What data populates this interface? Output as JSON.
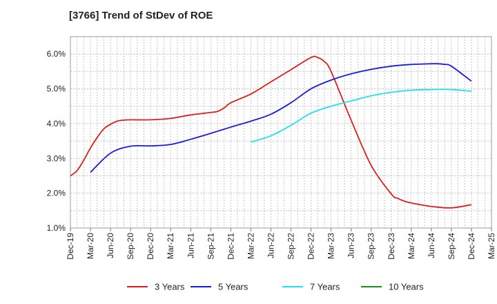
{
  "chart_data": {
    "type": "line",
    "title": "[3766]  Trend of StDev of ROE",
    "xlabel": "",
    "ylabel": "",
    "ylim": [
      1.0,
      6.5
    ],
    "y_ticks": [
      "1.0%",
      "2.0%",
      "3.0%",
      "4.0%",
      "5.0%",
      "6.0%"
    ],
    "y_tick_values": [
      1.0,
      2.0,
      3.0,
      4.0,
      5.0,
      6.0
    ],
    "x_ticks": [
      "Dec-19",
      "Mar-20",
      "Jun-20",
      "Sep-20",
      "Dec-20",
      "Mar-21",
      "Jun-21",
      "Sep-21",
      "Dec-21",
      "Mar-22",
      "Jun-22",
      "Sep-22",
      "Dec-22",
      "Mar-23",
      "Jun-23",
      "Sep-23",
      "Dec-23",
      "Mar-24",
      "Jun-24",
      "Sep-24",
      "Dec-24",
      "Mar-25"
    ],
    "grid": true,
    "legend_position": "bottom",
    "series": [
      {
        "name": "3 Years",
        "color": "#e01b1b",
        "x": [
          "Dec-19",
          "Jan-20",
          "Feb-20",
          "Mar-20",
          "Apr-20",
          "May-20",
          "Jun-20",
          "Jul-20",
          "Aug-20",
          "Sep-20",
          "Dec-20",
          "Mar-21",
          "Jun-21",
          "Sep-21",
          "Oct-21",
          "Nov-21",
          "Dec-21",
          "Mar-22",
          "Jun-22",
          "Sep-22",
          "Dec-22",
          "Jan-23",
          "Feb-23",
          "Mar-23",
          "Jun-23",
          "Sep-23",
          "Dec-23",
          "Jan-24",
          "Feb-24",
          "Mar-24",
          "Jun-24",
          "Sep-24",
          "Dec-24"
        ],
        "values": [
          2.5,
          2.65,
          2.95,
          3.3,
          3.6,
          3.85,
          3.98,
          4.07,
          4.1,
          4.11,
          4.11,
          4.15,
          4.25,
          4.32,
          4.35,
          4.45,
          4.6,
          4.85,
          5.2,
          5.55,
          5.9,
          5.9,
          5.78,
          5.5,
          4.1,
          2.8,
          1.98,
          1.85,
          1.77,
          1.72,
          1.62,
          1.58,
          1.67
        ]
      },
      {
        "name": "5 Years",
        "color": "#1a1adf",
        "x": [
          "Mar-20",
          "Jun-20",
          "Sep-20",
          "Dec-20",
          "Mar-21",
          "Jun-21",
          "Sep-21",
          "Dec-21",
          "Mar-22",
          "Jun-22",
          "Sep-22",
          "Dec-22",
          "Mar-23",
          "Jun-23",
          "Sep-23",
          "Dec-23",
          "Mar-24",
          "Jun-24",
          "Jul-24",
          "Aug-24",
          "Sep-24",
          "Dec-24"
        ],
        "values": [
          2.6,
          3.15,
          3.35,
          3.36,
          3.4,
          3.55,
          3.72,
          3.9,
          4.07,
          4.27,
          4.6,
          5.0,
          5.25,
          5.43,
          5.56,
          5.65,
          5.7,
          5.72,
          5.72,
          5.7,
          5.65,
          5.22
        ]
      },
      {
        "name": "7 Years",
        "color": "#22e1e8",
        "x": [
          "Mar-22",
          "Jun-22",
          "Sep-22",
          "Dec-22",
          "Mar-23",
          "Jun-23",
          "Sep-23",
          "Dec-23",
          "Mar-24",
          "Jun-24",
          "Sep-24",
          "Dec-24"
        ],
        "values": [
          3.47,
          3.65,
          3.95,
          4.3,
          4.5,
          4.65,
          4.8,
          4.9,
          4.96,
          4.98,
          4.98,
          4.93
        ]
      },
      {
        "name": "10 Years",
        "color": "#1e8c1e",
        "x": [],
        "values": []
      }
    ]
  }
}
